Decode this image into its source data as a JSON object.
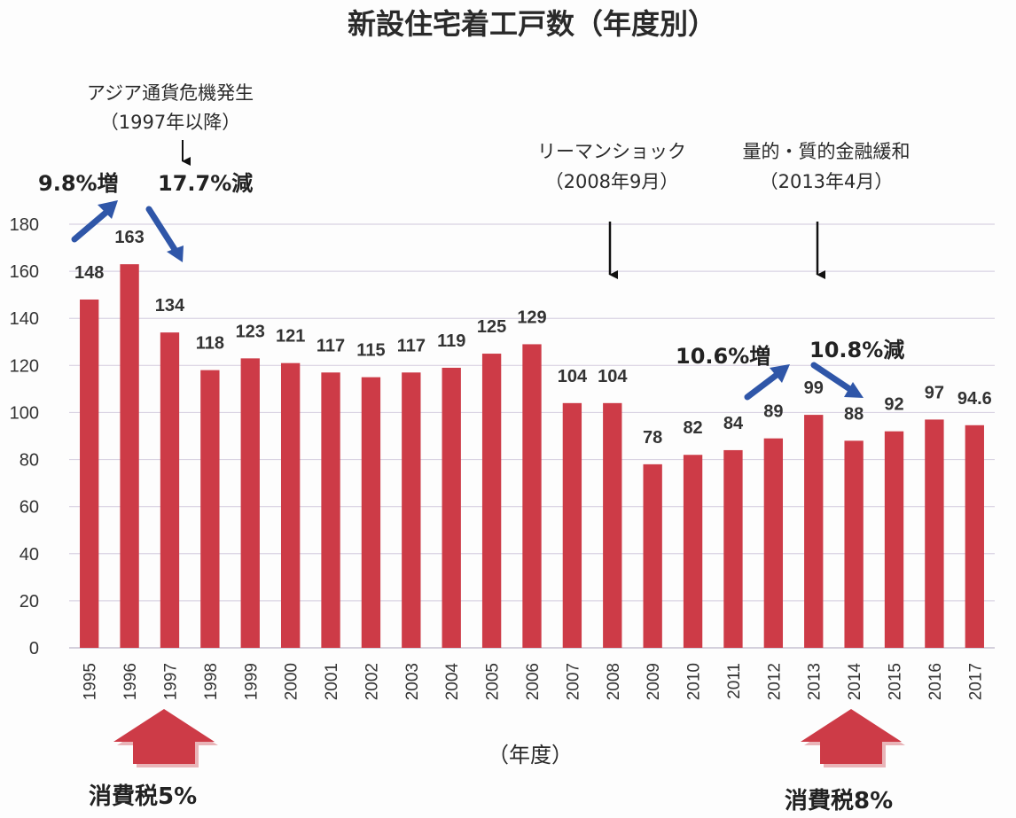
{
  "chart_data": {
    "type": "bar",
    "title": "新設住宅着工戸数（年度別）",
    "xlabel": "（年度）",
    "ylabel": "",
    "ylim": [
      0,
      180
    ],
    "yticks": [
      0,
      20,
      40,
      60,
      80,
      100,
      120,
      140,
      160,
      180
    ],
    "grid": true,
    "categories": [
      "1995",
      "1996",
      "1997",
      "1998",
      "1999",
      "2000",
      "2001",
      "2002",
      "2003",
      "2004",
      "2005",
      "2006",
      "2007",
      "2008",
      "2009",
      "2010",
      "2011",
      "2012",
      "2013",
      "2014",
      "2015",
      "2016",
      "2017"
    ],
    "values": [
      148,
      163,
      134,
      118,
      123,
      121,
      117,
      115,
      117,
      119,
      125,
      129,
      104,
      104,
      78,
      82,
      84,
      89,
      99,
      88,
      92,
      97,
      94.6
    ],
    "value_labels": [
      "148",
      "163",
      "134",
      "118",
      "123",
      "121",
      "117",
      "115",
      "117",
      "119",
      "125",
      "129",
      "104",
      "104",
      "78",
      "82",
      "84",
      "89",
      "99",
      "88",
      "92",
      "97",
      "94.6"
    ],
    "bar_color": "#cd3b47"
  },
  "annotations": {
    "asia_crisis_line1": "アジア通貨危機発生",
    "asia_crisis_line2": "（1997年以降）",
    "increase_1996": "9.8%増",
    "decrease_1997": "17.7%減",
    "lehman_line1": "リーマンショック",
    "lehman_line2": "（2008年9月）",
    "qe_line1": "量的・質的金融緩和",
    "qe_line2": "（2013年4月）",
    "increase_2013": "10.6%増",
    "decrease_2014": "10.8%減",
    "tax_5": "消費税5%",
    "tax_8": "消費税8%"
  },
  "colors": {
    "arrow_blue": "#2f56a8",
    "tax_arrow_red": "#cd3b47",
    "grid": "#d9d3e3"
  }
}
